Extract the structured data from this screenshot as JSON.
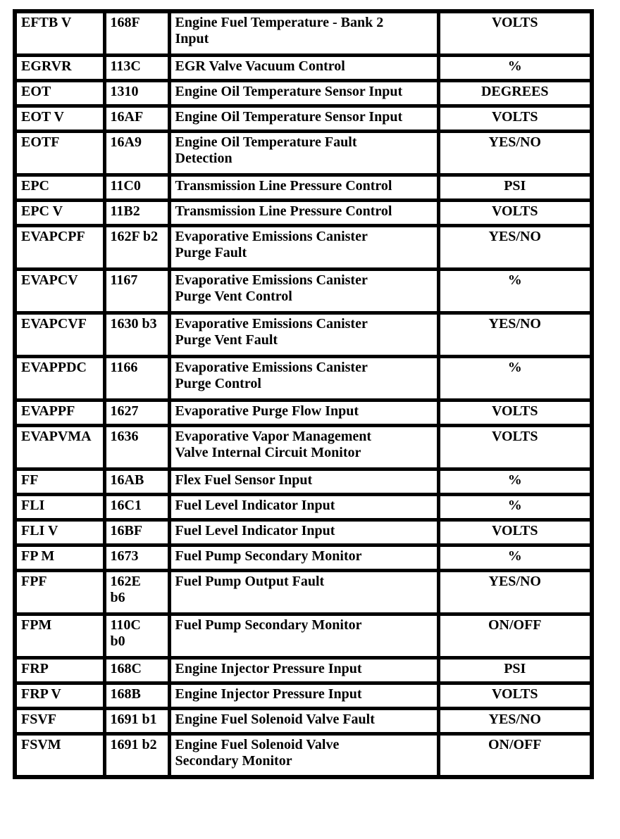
{
  "table": {
    "rows": [
      {
        "name": "EFTB V",
        "code": "168F",
        "description": "Engine Fuel Temperature - Bank 2\nInput",
        "units": "VOLTS"
      },
      {
        "name": "EGRVR",
        "code": "113C",
        "description": "EGR Valve Vacuum Control",
        "units": "%"
      },
      {
        "name": "EOT",
        "code": "1310",
        "description": "Engine Oil Temperature Sensor Input",
        "units": "DEGREES"
      },
      {
        "name": "EOT V",
        "code": "16AF",
        "description": "Engine Oil Temperature Sensor Input",
        "units": "VOLTS"
      },
      {
        "name": "EOTF",
        "code": "16A9",
        "description": "Engine Oil Temperature Fault\nDetection",
        "units": "YES/NO"
      },
      {
        "name": "EPC",
        "code": "11C0",
        "description": "Transmission Line Pressure Control",
        "units": "PSI"
      },
      {
        "name": "EPC V",
        "code": "11B2",
        "description": "Transmission Line Pressure Control",
        "units": "VOLTS"
      },
      {
        "name": "EVAPCPF",
        "code": "162F b2",
        "description": "Evaporative Emissions Canister\nPurge Fault",
        "units": "YES/NO"
      },
      {
        "name": "EVAPCV",
        "code": "1167",
        "description": "Evaporative Emissions Canister\nPurge Vent Control",
        "units": "%"
      },
      {
        "name": "EVAPCVF",
        "code": "1630 b3",
        "description": "Evaporative Emissions Canister\nPurge Vent Fault",
        "units": "YES/NO"
      },
      {
        "name": "EVAPPDC",
        "code": "1166",
        "description": "Evaporative Emissions Canister\nPurge Control",
        "units": "%"
      },
      {
        "name": "EVAPPF",
        "code": "1627",
        "description": "Evaporative Purge Flow Input",
        "units": "VOLTS"
      },
      {
        "name": "EVAPVMA",
        "code": "1636",
        "description": "Evaporative Vapor Management\nValve Internal Circuit Monitor",
        "units": "VOLTS"
      },
      {
        "name": "FF",
        "code": "16AB",
        "description": "Flex Fuel Sensor Input",
        "units": "%"
      },
      {
        "name": "FLI",
        "code": "16C1",
        "description": "Fuel Level Indicator Input",
        "units": "%"
      },
      {
        "name": "FLI V",
        "code": "16BF",
        "description": "Fuel Level Indicator Input",
        "units": "VOLTS"
      },
      {
        "name": "FP M",
        "code": "1673",
        "description": "Fuel Pump Secondary Monitor",
        "units": "%"
      },
      {
        "name": "FPF",
        "code": "162E\nb6",
        "description": "Fuel Pump Output Fault",
        "units": "YES/NO"
      },
      {
        "name": "FPM",
        "code": "110C\nb0",
        "description": "Fuel Pump Secondary Monitor",
        "units": "ON/OFF"
      },
      {
        "name": "FRP",
        "code": "168C",
        "description": "Engine Injector Pressure Input",
        "units": "PSI"
      },
      {
        "name": "FRP V",
        "code": "168B",
        "description": "Engine Injector Pressure Input",
        "units": "VOLTS"
      },
      {
        "name": "FSVF",
        "code": "1691 b1",
        "description": "Engine Fuel Solenoid Valve Fault",
        "units": "YES/NO"
      },
      {
        "name": "FSVM",
        "code": "1691 b2",
        "description": "Engine Fuel Solenoid Valve\nSecondary Monitor",
        "units": "ON/OFF"
      }
    ]
  }
}
